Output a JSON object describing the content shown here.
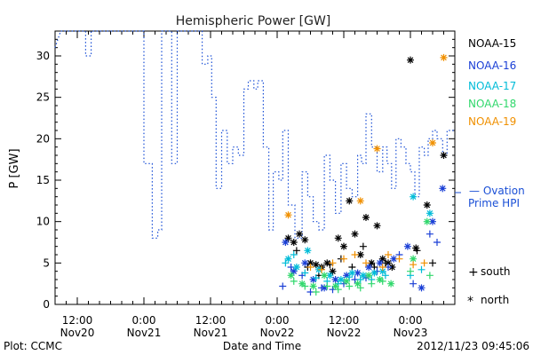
{
  "chart_data": {
    "type": "scatter",
    "title": "Hemispheric Power [GW]",
    "xlabel": "Date and Time",
    "ylabel": "P [GW]",
    "ylim": [
      0,
      33
    ],
    "yticks": [
      0,
      5,
      10,
      15,
      20,
      25,
      30
    ],
    "xlim": [
      -12,
      60
    ],
    "xticks": [
      {
        "x": -8,
        "line1": "12:00",
        "line2": "Nov20"
      },
      {
        "x": 4,
        "line1": "0:00",
        "line2": "Nov21"
      },
      {
        "x": 16,
        "line1": "12:00",
        "line2": "Nov21"
      },
      {
        "x": 28,
        "line1": "0:00",
        "line2": "Nov22"
      },
      {
        "x": 40,
        "line1": "12:00",
        "line2": "Nov22"
      },
      {
        "x": 52,
        "line1": "0:00",
        "line2": "Nov23"
      }
    ],
    "footer_left": "Plot: CCMC",
    "footer_right": "2012/11/23 09:45:06",
    "ovation": {
      "label1": "— Ovation",
      "label2": "Prime HPI",
      "color": "#1a4fd6",
      "steps": [
        [
          -12,
          31
        ],
        [
          -11,
          33
        ],
        [
          -6.5,
          33
        ],
        [
          -6.5,
          30
        ],
        [
          -5.5,
          30
        ],
        [
          -5.5,
          33
        ],
        [
          4,
          33
        ],
        [
          4,
          17
        ],
        [
          5.5,
          17
        ],
        [
          5.5,
          8
        ],
        [
          6.5,
          8
        ],
        [
          6.5,
          9
        ],
        [
          7.2,
          9
        ],
        [
          7.2,
          33
        ],
        [
          9,
          33
        ],
        [
          9,
          17
        ],
        [
          10,
          17
        ],
        [
          10,
          33
        ],
        [
          14.5,
          33
        ],
        [
          14.5,
          29
        ],
        [
          15.5,
          29
        ],
        [
          15.5,
          30
        ],
        [
          16.2,
          30
        ],
        [
          16.2,
          25
        ],
        [
          17,
          25
        ],
        [
          17,
          14
        ],
        [
          18,
          14
        ],
        [
          18,
          21
        ],
        [
          19,
          21
        ],
        [
          19,
          17
        ],
        [
          20,
          17
        ],
        [
          20,
          19
        ],
        [
          21,
          19
        ],
        [
          21,
          18
        ],
        [
          22,
          18
        ],
        [
          22,
          26
        ],
        [
          22.8,
          26
        ],
        [
          22.8,
          27
        ],
        [
          23.8,
          27
        ],
        [
          23.8,
          26
        ],
        [
          24.5,
          26
        ],
        [
          24.5,
          27
        ],
        [
          25.5,
          27
        ],
        [
          25.5,
          19
        ],
        [
          26.5,
          19
        ],
        [
          26.5,
          9
        ],
        [
          27.3,
          9
        ],
        [
          27.3,
          16
        ],
        [
          28.3,
          16
        ],
        [
          28.3,
          15
        ],
        [
          29,
          15
        ],
        [
          29,
          21
        ],
        [
          30,
          21
        ],
        [
          30,
          12
        ],
        [
          31.2,
          12
        ],
        [
          31.2,
          8
        ],
        [
          32.5,
          8
        ],
        [
          32.5,
          16
        ],
        [
          33.5,
          16
        ],
        [
          33.5,
          13
        ],
        [
          34.5,
          13
        ],
        [
          34.5,
          10
        ],
        [
          35.5,
          10
        ],
        [
          35.5,
          9
        ],
        [
          36.5,
          9
        ],
        [
          36.5,
          18
        ],
        [
          37.5,
          18
        ],
        [
          37.5,
          15
        ],
        [
          38.5,
          15
        ],
        [
          38.5,
          11
        ],
        [
          39.5,
          11
        ],
        [
          39.5,
          17
        ],
        [
          40.5,
          17
        ],
        [
          40.5,
          14
        ],
        [
          41.5,
          14
        ],
        [
          41.5,
          13
        ],
        [
          42.5,
          13
        ],
        [
          42.5,
          18
        ],
        [
          43.2,
          18
        ],
        [
          43.2,
          17
        ],
        [
          44,
          17
        ],
        [
          44,
          23
        ],
        [
          45,
          23
        ],
        [
          45,
          19
        ],
        [
          46,
          19
        ],
        [
          46,
          16
        ],
        [
          47,
          16
        ],
        [
          47,
          19
        ],
        [
          47.8,
          19
        ],
        [
          47.8,
          17
        ],
        [
          48.6,
          17
        ],
        [
          48.6,
          14
        ],
        [
          49.4,
          14
        ],
        [
          49.4,
          20
        ],
        [
          50.3,
          20
        ],
        [
          50.3,
          19
        ],
        [
          51.2,
          19
        ],
        [
          51.2,
          17
        ],
        [
          52,
          17
        ],
        [
          52,
          16
        ],
        [
          52.8,
          16
        ],
        [
          52.8,
          13
        ],
        [
          53.6,
          13
        ],
        [
          53.6,
          19
        ],
        [
          54.5,
          19
        ],
        [
          54.5,
          18
        ],
        [
          55.2,
          18
        ],
        [
          55.2,
          20
        ],
        [
          56,
          20
        ],
        [
          56,
          21
        ],
        [
          56.8,
          21
        ],
        [
          56.8,
          20
        ],
        [
          57.8,
          20
        ],
        [
          57.8,
          18
        ],
        [
          58.6,
          18
        ],
        [
          58.6,
          21
        ],
        [
          60,
          21
        ]
      ]
    },
    "series": [
      {
        "name": "NOAA-15",
        "color": "#000000",
        "north": [
          [
            52,
            29.5
          ],
          [
            30,
            8
          ],
          [
            31,
            7.5
          ],
          [
            32,
            8.5
          ],
          [
            33,
            7.8
          ],
          [
            34,
            5
          ],
          [
            35,
            4.8
          ],
          [
            36,
            4.5
          ],
          [
            37,
            5
          ],
          [
            38,
            4
          ],
          [
            39,
            8
          ],
          [
            40,
            7
          ],
          [
            41,
            12.5
          ],
          [
            42,
            8.5
          ],
          [
            43,
            6
          ],
          [
            44,
            10.5
          ],
          [
            45,
            5
          ],
          [
            46,
            9.5
          ],
          [
            47,
            5.5
          ],
          [
            48,
            5
          ],
          [
            48.7,
            4.5
          ],
          [
            53,
            6.8
          ],
          [
            55,
            12
          ],
          [
            58,
            18
          ]
        ],
        "south": [
          [
            31.5,
            6.5
          ],
          [
            33.5,
            4.5
          ],
          [
            35.5,
            3.5
          ],
          [
            37.5,
            4.8
          ],
          [
            39.5,
            5.5
          ],
          [
            41.5,
            4.5
          ],
          [
            43.5,
            7
          ],
          [
            45.5,
            4.5
          ],
          [
            47.5,
            5
          ],
          [
            53.2,
            6.5
          ],
          [
            56,
            5
          ]
        ]
      },
      {
        "name": "NOAA-16",
        "color": "#1a3fd6",
        "north": [
          [
            29.5,
            7.5
          ],
          [
            31,
            4
          ],
          [
            33,
            5
          ],
          [
            34.5,
            3
          ],
          [
            36.5,
            2
          ],
          [
            38.5,
            3
          ],
          [
            40.5,
            3.5
          ],
          [
            42.5,
            3.8
          ],
          [
            44.5,
            4.5
          ],
          [
            46.5,
            5
          ],
          [
            49,
            5.5
          ],
          [
            51.5,
            7
          ],
          [
            54,
            2
          ],
          [
            56,
            10
          ],
          [
            57.8,
            14
          ]
        ],
        "south": [
          [
            29,
            2.2
          ],
          [
            30.5,
            4.5
          ],
          [
            32.5,
            3.5
          ],
          [
            34,
            1.5
          ],
          [
            36,
            2
          ],
          [
            38,
            1.8
          ],
          [
            40,
            2.5
          ],
          [
            42,
            3
          ],
          [
            44,
            3.2
          ],
          [
            46,
            4
          ],
          [
            48,
            4.5
          ],
          [
            50,
            6
          ],
          [
            52.5,
            2.5
          ],
          [
            55.5,
            8.5
          ],
          [
            56.8,
            7.5
          ]
        ]
      },
      {
        "name": "NOAA-17",
        "color": "#00bcd8",
        "north": [
          [
            30,
            5.5
          ],
          [
            31.5,
            4.5
          ],
          [
            33.5,
            6.5
          ],
          [
            35.5,
            4.2
          ],
          [
            37.5,
            3.5
          ],
          [
            39.5,
            3
          ],
          [
            41.5,
            3.8
          ],
          [
            43.5,
            3.5
          ],
          [
            45.5,
            3.8
          ],
          [
            47,
            4
          ],
          [
            52.5,
            13
          ],
          [
            55.5,
            11
          ]
        ],
        "south": [
          [
            29.5,
            5
          ],
          [
            31,
            6
          ],
          [
            33,
            3.8
          ],
          [
            35,
            3.2
          ],
          [
            37,
            2.8
          ],
          [
            39,
            2.5
          ],
          [
            41,
            3.3
          ],
          [
            43,
            3
          ],
          [
            45,
            3
          ],
          [
            47.5,
            3.5
          ],
          [
            52,
            3.5
          ],
          [
            54,
            4.2
          ]
        ]
      },
      {
        "name": "NOAA-18",
        "color": "#30d86c",
        "north": [
          [
            30.5,
            3.5
          ],
          [
            32.5,
            2.5
          ],
          [
            34.5,
            2.2
          ],
          [
            36.5,
            3.5
          ],
          [
            38.5,
            2.2
          ],
          [
            40.5,
            2.8
          ],
          [
            42.5,
            2.5
          ],
          [
            44.5,
            3.5
          ],
          [
            46.5,
            3
          ],
          [
            48.5,
            2.5
          ],
          [
            52.5,
            5.5
          ],
          [
            55,
            10
          ]
        ],
        "south": [
          [
            31,
            2.8
          ],
          [
            33,
            2.2
          ],
          [
            35,
            1.5
          ],
          [
            37,
            2.2
          ],
          [
            39,
            1.8
          ],
          [
            41,
            2.2
          ],
          [
            43,
            2
          ],
          [
            45,
            2.5
          ],
          [
            47,
            2.8
          ],
          [
            52,
            4
          ],
          [
            55.5,
            3.5
          ]
        ]
      },
      {
        "name": "NOAA-19",
        "color": "#f09000",
        "north": [
          [
            30,
            10.8
          ],
          [
            43,
            12.5
          ],
          [
            46,
            18.8
          ],
          [
            56,
            19.5
          ],
          [
            58,
            29.8
          ]
        ],
        "south": [
          [
            34,
            4.5
          ],
          [
            36,
            4.2
          ],
          [
            38,
            5
          ],
          [
            40,
            5.5
          ],
          [
            42,
            6
          ],
          [
            44,
            5
          ],
          [
            47,
            4.5
          ],
          [
            48,
            6
          ],
          [
            50,
            5.5
          ],
          [
            52.5,
            4.8
          ],
          [
            54.5,
            5
          ]
        ]
      }
    ],
    "legend_markers": {
      "south_symbol": "+",
      "south_label": "south",
      "north_symbol": "*",
      "north_label": "north"
    }
  }
}
